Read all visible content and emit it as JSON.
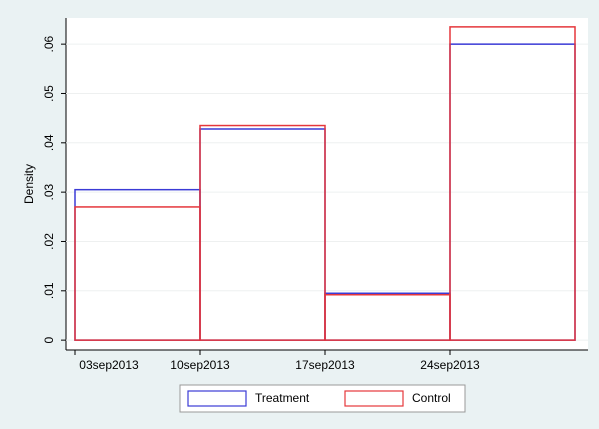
{
  "chart_data": {
    "type": "histogram",
    "y_label": "Density",
    "bins": [
      19604,
      19611,
      19618,
      19625,
      19632
    ],
    "series": [
      {
        "name": "Treatment",
        "color": "#3b3bd6",
        "values": [
          0.0305,
          0.0428,
          0.0095,
          0.06
        ]
      },
      {
        "name": "Control",
        "color": "#e5373b",
        "values": [
          0.027,
          0.0435,
          0.0092,
          0.0635
        ]
      }
    ],
    "xlim": [
      19604,
      19632
    ],
    "xticks": [
      {
        "value": 19604,
        "label": "03sep2013"
      },
      {
        "value": 19611,
        "label": "10sep2013"
      },
      {
        "value": 19618,
        "label": "17sep2013"
      },
      {
        "value": 19625,
        "label": "24sep2013"
      }
    ],
    "ylim": [
      -0.002,
      0.0653
    ],
    "yticks": [
      0,
      {
        "value": 0.01,
        "label": ".01"
      },
      {
        "value": 0.02,
        "label": ".02"
      },
      {
        "value": 0.03,
        "label": ".03"
      },
      {
        "value": 0.04,
        "label": ".04"
      },
      {
        "value": 0.05,
        "label": ".05"
      },
      {
        "value": 0.06,
        "label": ".06"
      }
    ],
    "grid": true,
    "legend": "bottom"
  }
}
